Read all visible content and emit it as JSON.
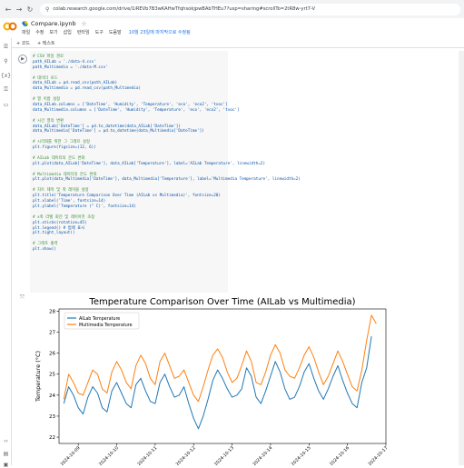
{
  "browser": {
    "back": "←",
    "forward": "→",
    "reload": "↻",
    "url": "colab.research.google.com/drive/1iREVb7B3wKAHwTfqhsokjpwBAbTHEu7?usp=sharing#scrollTo=2tR8w-yrt7-V"
  },
  "notebook": {
    "title": "Compare.ipynb",
    "menu": [
      "파일",
      "수정",
      "보기",
      "삽입",
      "런타임",
      "도구",
      "도움말"
    ],
    "saved_note": "10월 23일에 마지막으로 수정됨"
  },
  "toolbar": {
    "add_code": "+ 코드",
    "add_text": "+ 텍스트"
  },
  "sidebar": {
    "icons": [
      "menu-icon",
      "search-icon",
      "variables-icon",
      "key-icon",
      "folder-icon"
    ]
  },
  "code": {
    "lines": [
      "# CSV 파일 경로",
      "path_AILab = './data-4.csv'",
      "path_Multimedia = './data-M.csv'",
      "",
      "# 데이터 로드",
      "data_AILab = pd.read_csv(path_AILab)",
      "data_Multimedia = pd.read_csv(path_Multimedia)",
      "",
      "# 열 이름 설정",
      "data_AILab.columns = ['DateTime', 'Humidity', 'Temperature', 'eco', 'eco2', 'tvoc']",
      "data_Multimedia.columns = ['DateTime', 'Humidity', 'Temperature', 'eco', 'eco2', 'tvoc']",
      "",
      "# 시간 열의 변환",
      "data_AILab['DateTime'] = pd.to_datetime(data_AILab['DateTime'])",
      "data_Multimedia['DateTime'] = pd.to_datetime(data_Multimedia['DateTime'])",
      "",
      "# 시각화를 위한 그 그래프 설정",
      "plt.figure(figsize=(12, 6))",
      "",
      "# AILab 데이터의 온도 변화",
      "plt.plot(data_AILab['DateTime'], data_AILab['Temperature'], label='AILab Temperature', linewidth=2)",
      "",
      "# Multimedia 데이터의 온도 변화",
      "plt.plot(data_Multimedia['DateTime'], data_Multimedia['Temperature'], label='Multimedia Temperature', linewidth=2)",
      "",
      "# 차트 제목 및 축 레이블 설정",
      "plt.title('Temperature Comparison Over Time (AILab vs Multimedia)', fontsize=20)",
      "plt.xlabel('Time', fontsize=14)",
      "plt.ylabel('Temperature (° C)', fontsize=14)",
      "",
      "# x축 라벨 회전 및 레이아웃 조정",
      "plt.xticks(rotation=45)",
      "plt.legend() # 범례 표시",
      "plt.tight_layout()",
      "",
      "# 그래프 출력",
      "plt.show()"
    ]
  },
  "chart_data": {
    "type": "line",
    "title": "Temperature Comparison Over Time (AILab vs Multimedia)",
    "xlabel": "",
    "ylabel": "Temperature (°C)",
    "ylim": [
      21.7,
      28.1
    ],
    "yticks": [
      22,
      23,
      24,
      25,
      26,
      27,
      28
    ],
    "x_is_date": true,
    "xlim": [
      "2024-10-08 12:00",
      "2024-10-17 00:00"
    ],
    "xticks": [
      "2024-10-09",
      "2024-10-10",
      "2024-10-11",
      "2024-10-12",
      "2024-10-13",
      "2024-10-14",
      "2024-10-15",
      "2024-10-16",
      "2024-10-17"
    ],
    "grid": false,
    "legend_position": "top-left",
    "series": [
      {
        "name": "AILab Temperature",
        "color": "#1f77b4",
        "x": [
          "2024-10-08 15:00",
          "2024-10-08 18:00",
          "2024-10-08 21:00",
          "2024-10-09 00:00",
          "2024-10-09 03:00",
          "2024-10-09 06:00",
          "2024-10-09 09:00",
          "2024-10-09 12:00",
          "2024-10-09 15:00",
          "2024-10-09 18:00",
          "2024-10-09 21:00",
          "2024-10-10 00:00",
          "2024-10-10 03:00",
          "2024-10-10 06:00",
          "2024-10-10 09:00",
          "2024-10-10 12:00",
          "2024-10-10 15:00",
          "2024-10-10 18:00",
          "2024-10-10 21:00",
          "2024-10-11 00:00",
          "2024-10-11 03:00",
          "2024-10-11 06:00",
          "2024-10-11 09:00",
          "2024-10-11 12:00",
          "2024-10-11 15:00",
          "2024-10-11 18:00",
          "2024-10-11 21:00",
          "2024-10-12 00:00",
          "2024-10-12 03:00",
          "2024-10-12 06:00",
          "2024-10-12 09:00",
          "2024-10-12 12:00",
          "2024-10-12 15:00",
          "2024-10-12 18:00",
          "2024-10-12 21:00",
          "2024-10-13 00:00",
          "2024-10-13 03:00",
          "2024-10-13 06:00",
          "2024-10-13 09:00",
          "2024-10-13 12:00",
          "2024-10-13 15:00",
          "2024-10-13 18:00",
          "2024-10-13 21:00",
          "2024-10-14 00:00",
          "2024-10-14 03:00",
          "2024-10-14 06:00",
          "2024-10-14 09:00",
          "2024-10-14 12:00",
          "2024-10-14 15:00",
          "2024-10-14 18:00",
          "2024-10-14 21:00",
          "2024-10-15 00:00",
          "2024-10-15 03:00",
          "2024-10-15 06:00",
          "2024-10-15 09:00",
          "2024-10-15 12:00",
          "2024-10-15 15:00",
          "2024-10-15 18:00",
          "2024-10-15 21:00",
          "2024-10-16 00:00",
          "2024-10-16 03:00",
          "2024-10-16 06:00",
          "2024-10-16 09:00",
          "2024-10-16 12:00",
          "2024-10-16 15:00"
        ],
        "values": [
          23.6,
          24.4,
          24.0,
          23.4,
          23.1,
          23.9,
          24.4,
          24.1,
          23.4,
          23.2,
          24.2,
          24.6,
          24.1,
          23.6,
          23.4,
          24.5,
          24.8,
          24.2,
          23.7,
          23.6,
          24.6,
          25.0,
          24.4,
          23.9,
          24.0,
          24.4,
          23.6,
          22.9,
          22.4,
          23.0,
          23.8,
          24.7,
          25.2,
          24.8,
          24.3,
          23.9,
          24.0,
          24.3,
          25.3,
          24.9,
          23.9,
          23.6,
          24.2,
          24.9,
          25.6,
          25.1,
          24.3,
          23.8,
          23.9,
          24.4,
          25.1,
          25.5,
          24.8,
          24.2,
          23.8,
          24.3,
          24.9,
          25.4,
          24.7,
          24.1,
          23.6,
          23.4,
          24.6,
          25.3,
          26.8
        ]
      },
      {
        "name": "Multimedia Temperature",
        "color": "#ff7f0e",
        "x": [
          "2024-10-08 15:00",
          "2024-10-08 18:00",
          "2024-10-08 21:00",
          "2024-10-09 00:00",
          "2024-10-09 03:00",
          "2024-10-09 06:00",
          "2024-10-09 09:00",
          "2024-10-09 12:00",
          "2024-10-09 15:00",
          "2024-10-09 18:00",
          "2024-10-09 21:00",
          "2024-10-10 00:00",
          "2024-10-10 03:00",
          "2024-10-10 06:00",
          "2024-10-10 09:00",
          "2024-10-10 12:00",
          "2024-10-10 15:00",
          "2024-10-10 18:00",
          "2024-10-10 21:00",
          "2024-10-11 00:00",
          "2024-10-11 03:00",
          "2024-10-11 06:00",
          "2024-10-11 09:00",
          "2024-10-11 12:00",
          "2024-10-11 15:00",
          "2024-10-11 18:00",
          "2024-10-11 21:00",
          "2024-10-12 00:00",
          "2024-10-12 03:00",
          "2024-10-12 06:00",
          "2024-10-12 09:00",
          "2024-10-12 12:00",
          "2024-10-12 15:00",
          "2024-10-12 18:00",
          "2024-10-12 21:00",
          "2024-10-13 00:00",
          "2024-10-13 03:00",
          "2024-10-13 06:00",
          "2024-10-13 09:00",
          "2024-10-13 12:00",
          "2024-10-13 15:00",
          "2024-10-13 18:00",
          "2024-10-13 21:00",
          "2024-10-14 00:00",
          "2024-10-14 03:00",
          "2024-10-14 06:00",
          "2024-10-14 09:00",
          "2024-10-14 12:00",
          "2024-10-14 15:00",
          "2024-10-14 18:00",
          "2024-10-14 21:00",
          "2024-10-15 00:00",
          "2024-10-15 03:00",
          "2024-10-15 06:00",
          "2024-10-15 09:00",
          "2024-10-15 12:00",
          "2024-10-15 15:00",
          "2024-10-15 18:00",
          "2024-10-15 21:00",
          "2024-10-16 00:00",
          "2024-10-16 03:00",
          "2024-10-16 06:00",
          "2024-10-16 09:00",
          "2024-10-16 12:00",
          "2024-10-16 15:00",
          "2024-10-16 18:00"
        ],
        "values": [
          23.8,
          25.0,
          24.6,
          24.1,
          24.0,
          24.6,
          25.2,
          25.0,
          24.3,
          24.1,
          25.1,
          25.6,
          25.2,
          24.6,
          24.3,
          25.4,
          25.9,
          25.5,
          24.8,
          24.5,
          25.6,
          26.0,
          25.4,
          24.8,
          24.9,
          25.2,
          24.6,
          24.0,
          23.7,
          24.4,
          25.2,
          25.9,
          26.2,
          25.8,
          25.1,
          24.6,
          24.8,
          25.4,
          26.1,
          25.6,
          24.6,
          24.5,
          25.1,
          25.9,
          26.4,
          26.0,
          25.2,
          24.9,
          24.8,
          25.3,
          25.9,
          26.3,
          25.8,
          25.1,
          24.5,
          24.9,
          25.5,
          26.1,
          25.6,
          25.0,
          24.4,
          24.2,
          25.2,
          26.6,
          27.8,
          27.4
        ]
      }
    ]
  }
}
